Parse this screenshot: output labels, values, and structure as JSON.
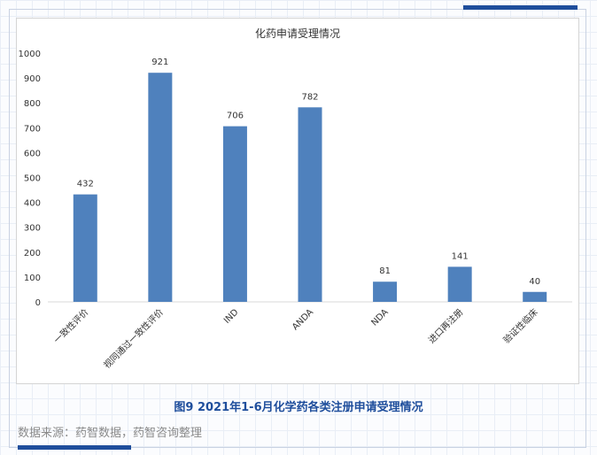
{
  "colors": {
    "bar": "#4f81bd",
    "accent": "#1f4e9c",
    "caption": "#1f4e9c"
  },
  "caption": "图9 2021年1-6月化学药各类注册申请受理情况",
  "source": "数据来源：药智数据，药智咨询整理",
  "chart_data": {
    "type": "bar",
    "title": "化药申请受理情况",
    "categories": [
      "一致性评价",
      "视同通过一致性评价",
      "IND",
      "ANDA",
      "NDA",
      "进口再注册",
      "验证性临床"
    ],
    "values": [
      432,
      921,
      706,
      782,
      81,
      141,
      40
    ],
    "ylim": [
      0,
      1000
    ],
    "yticks": [
      0,
      100,
      200,
      300,
      400,
      500,
      600,
      700,
      800,
      900,
      1000
    ],
    "grid": false,
    "legend": "none",
    "xlabel": "",
    "ylabel": ""
  }
}
